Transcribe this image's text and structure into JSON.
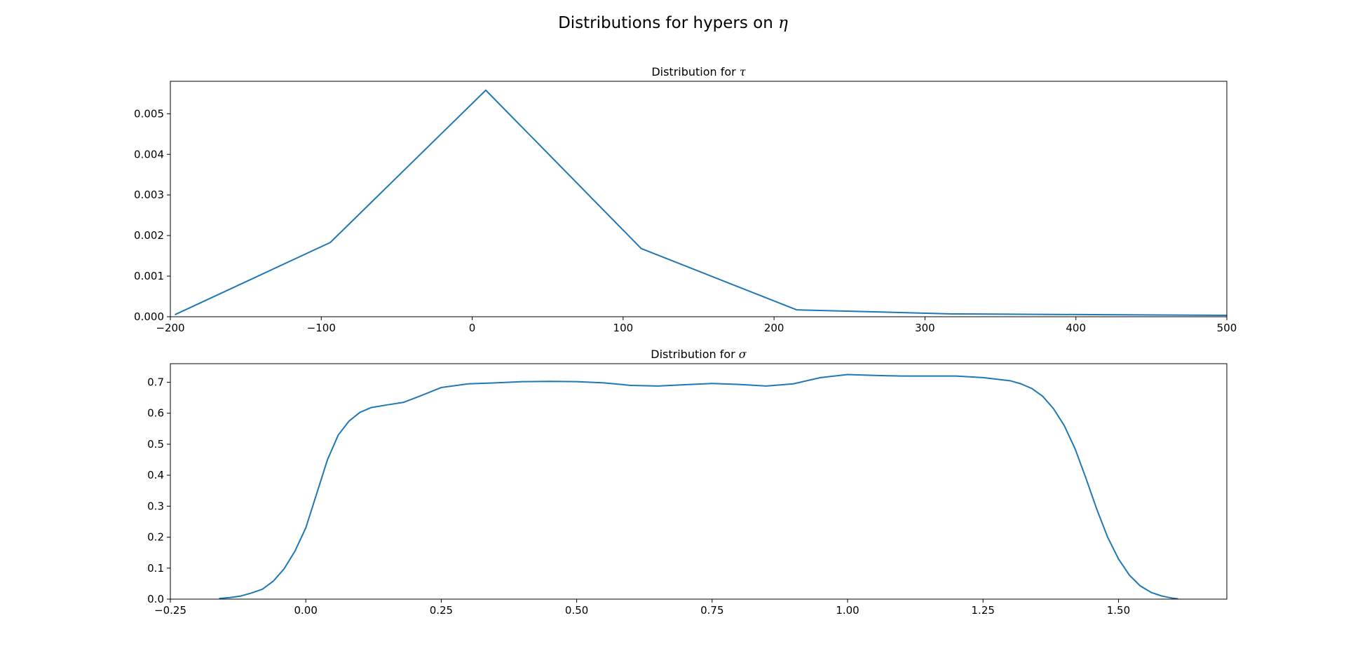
{
  "figure": {
    "suptitle": "Distributions for hypers on ",
    "suptitle_symbol": "η"
  },
  "colors": {
    "line": "#1f77b4",
    "axes": "#000000",
    "background": "#ffffff"
  },
  "chart_data": [
    {
      "type": "line",
      "title": "Distribution for ",
      "title_symbol": "τ",
      "xlabel": "",
      "ylabel": "",
      "xlim": [
        -200,
        500
      ],
      "ylim": [
        0,
        0.0058
      ],
      "xticks": [
        -200,
        -100,
        0,
        100,
        200,
        300,
        400,
        500
      ],
      "xtick_labels": [
        "−200",
        "−100",
        "0",
        "100",
        "200",
        "300",
        "400",
        "500"
      ],
      "yticks": [
        0,
        0.001,
        0.002,
        0.003,
        0.004,
        0.005
      ],
      "ytick_labels": [
        "0.000",
        "0.001",
        "0.002",
        "0.003",
        "0.004",
        "0.005"
      ],
      "grid": false,
      "series": [
        {
          "x": [
            -197,
            -94,
            9,
            112,
            215,
            318,
            421,
            524
          ],
          "y": [
            5e-05,
            0.00183,
            0.00558,
            0.00168,
            0.00017,
            7e-05,
            5e-05,
            3e-05
          ]
        }
      ]
    },
    {
      "type": "line",
      "title": "Distribution for ",
      "title_symbol": "σ",
      "xlabel": "",
      "ylabel": "",
      "xlim": [
        -0.25,
        1.7
      ],
      "ylim": [
        0,
        0.76
      ],
      "xticks": [
        -0.25,
        0,
        0.25,
        0.5,
        0.75,
        1.0,
        1.25,
        1.5
      ],
      "xtick_labels": [
        "−0.25",
        "0.00",
        "0.25",
        "0.50",
        "0.75",
        "1.00",
        "1.25",
        "1.50"
      ],
      "yticks": [
        0,
        0.1,
        0.2,
        0.3,
        0.4,
        0.5,
        0.6,
        0.7
      ],
      "ytick_labels": [
        "0.0",
        "0.1",
        "0.2",
        "0.3",
        "0.4",
        "0.5",
        "0.6",
        "0.7"
      ],
      "grid": false,
      "series": [
        {
          "x": [
            -0.16,
            -0.14,
            -0.12,
            -0.1,
            -0.08,
            -0.06,
            -0.04,
            -0.02,
            0.0,
            0.02,
            0.04,
            0.06,
            0.08,
            0.1,
            0.12,
            0.15,
            0.18,
            0.21,
            0.25,
            0.3,
            0.35,
            0.4,
            0.45,
            0.5,
            0.55,
            0.6,
            0.65,
            0.7,
            0.75,
            0.8,
            0.85,
            0.9,
            0.95,
            1.0,
            1.05,
            1.1,
            1.15,
            1.2,
            1.25,
            1.3,
            1.32,
            1.34,
            1.36,
            1.38,
            1.4,
            1.42,
            1.44,
            1.46,
            1.48,
            1.5,
            1.52,
            1.54,
            1.56,
            1.58,
            1.6,
            1.61
          ],
          "y": [
            0.002,
            0.005,
            0.01,
            0.02,
            0.032,
            0.058,
            0.098,
            0.155,
            0.23,
            0.34,
            0.45,
            0.53,
            0.575,
            0.603,
            0.618,
            0.627,
            0.635,
            0.655,
            0.683,
            0.695,
            0.698,
            0.702,
            0.703,
            0.702,
            0.698,
            0.69,
            0.688,
            0.692,
            0.696,
            0.693,
            0.688,
            0.695,
            0.715,
            0.725,
            0.722,
            0.72,
            0.72,
            0.72,
            0.715,
            0.705,
            0.695,
            0.68,
            0.655,
            0.615,
            0.56,
            0.485,
            0.39,
            0.29,
            0.2,
            0.13,
            0.078,
            0.043,
            0.022,
            0.01,
            0.003,
            0.001
          ]
        }
      ]
    }
  ]
}
